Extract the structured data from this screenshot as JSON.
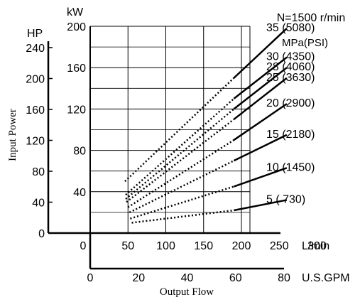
{
  "chart_data": {
    "type": "line",
    "title": "N=1500 r/min",
    "xlabel": "Output Flow",
    "ylabel": "Input Power",
    "x_axes": {
      "primary": {
        "unit": "L/min",
        "ticks": [
          0,
          50,
          100,
          150,
          200,
          250,
          300
        ],
        "range": [
          0,
          300
        ]
      },
      "secondary": {
        "unit": "U.S.GPM",
        "ticks": [
          0,
          20,
          40,
          60,
          80
        ],
        "range": [
          0,
          80
        ]
      }
    },
    "y_axes": {
      "primary": {
        "unit": "kW",
        "ticks": [
          40,
          80,
          120,
          160,
          200
        ],
        "range": [
          0,
          200
        ]
      },
      "secondary": {
        "unit": "HP",
        "ticks": [
          0,
          40,
          80,
          120,
          160,
          200,
          240
        ],
        "range": [
          0,
          240
        ]
      }
    },
    "legend_title": "MPa(PSI)",
    "grid": true,
    "series": [
      {
        "name": "5 ( 730)",
        "estimated_from": [
          55,
          10
        ],
        "solid_from": [
          190,
          22
        ],
        "to": [
          260,
          32
        ]
      },
      {
        "name": "10 (1450)",
        "estimated_from": [
          53,
          14
        ],
        "solid_from": [
          190,
          45
        ],
        "to": [
          260,
          63
        ]
      },
      {
        "name": "15 (2180)",
        "estimated_from": [
          52,
          20
        ],
        "solid_from": [
          190,
          70
        ],
        "to": [
          260,
          95
        ]
      },
      {
        "name": "20 (2900)",
        "estimated_from": [
          50,
          25
        ],
        "solid_from": [
          190,
          90
        ],
        "to": [
          260,
          125
        ]
      },
      {
        "name": "25 (3630)",
        "estimated_from": [
          48,
          30
        ],
        "solid_from": [
          190,
          110
        ],
        "to": [
          260,
          150
        ]
      },
      {
        "name": "28 (4060)",
        "estimated_from": [
          47,
          33
        ],
        "solid_from": [
          190,
          120
        ],
        "to": [
          260,
          160
        ]
      },
      {
        "name": "30 (4350)",
        "estimated_from": [
          47,
          37
        ],
        "solid_from": [
          190,
          130
        ],
        "to": [
          260,
          170
        ]
      },
      {
        "name": "35 (5080)",
        "estimated_from": [
          46,
          50
        ],
        "solid_from": [
          190,
          150
        ],
        "to": [
          260,
          198
        ]
      }
    ]
  }
}
